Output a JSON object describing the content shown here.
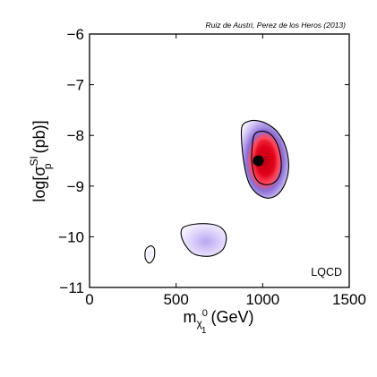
{
  "chart_data": {
    "type": "heatmap",
    "title": "",
    "credit": "Ruiz de Austri, Perez de los Heros (2013)",
    "model_label": "LQCD",
    "xlabel": {
      "base": "m",
      "sub": "χ",
      "sup": "0",
      "subsub": "1",
      "unit": " (GeV)"
    },
    "ylabel": {
      "prefix": "log[σ",
      "sup": "SI",
      "sub": "p",
      "suffix": " (pb)]"
    },
    "xlim": [
      0,
      1500
    ],
    "ylim": [
      -11,
      -6
    ],
    "x_ticks": [
      {
        "value": 0,
        "label": "0"
      },
      {
        "value": 500,
        "label": "500"
      },
      {
        "value": 1000,
        "label": "1000"
      },
      {
        "value": 1500,
        "label": "1500"
      }
    ],
    "y_ticks": [
      {
        "value": -6,
        "label": "−6"
      },
      {
        "value": -7,
        "label": "−7"
      },
      {
        "value": -8,
        "label": "−8"
      },
      {
        "value": -9,
        "label": "−9"
      },
      {
        "value": -10,
        "label": "−10"
      },
      {
        "value": -11,
        "label": "−11"
      }
    ],
    "best_fit_point": {
      "x": 975,
      "y": -8.5
    },
    "colors": {
      "low_density": "#8a6fd6",
      "mid_density": "#c9b8f2",
      "high_density": "#e0001a",
      "contour_line": "#000000",
      "best_fit": "#000000"
    },
    "regions": [
      {
        "name": "main-region",
        "outer_contour": [
          [
            880,
            -7.83
          ],
          [
            920,
            -7.72
          ],
          [
            970,
            -7.71
          ],
          [
            1030,
            -7.78
          ],
          [
            1090,
            -7.95
          ],
          [
            1135,
            -8.25
          ],
          [
            1150,
            -8.65
          ],
          [
            1120,
            -9.02
          ],
          [
            1060,
            -9.22
          ],
          [
            990,
            -9.2
          ],
          [
            930,
            -9.0
          ],
          [
            900,
            -8.7
          ],
          [
            880,
            -8.2
          ]
        ],
        "inner_contour": [
          [
            955,
            -7.97
          ],
          [
            1010,
            -7.92
          ],
          [
            1065,
            -8.05
          ],
          [
            1100,
            -8.35
          ],
          [
            1105,
            -8.7
          ],
          [
            1070,
            -8.92
          ],
          [
            1010,
            -8.97
          ],
          [
            960,
            -8.85
          ],
          [
            938,
            -8.55
          ],
          [
            940,
            -8.2
          ]
        ],
        "core_contour": [
          [
            985,
            -8.1
          ],
          [
            1040,
            -8.12
          ],
          [
            1075,
            -8.4
          ],
          [
            1065,
            -8.72
          ],
          [
            1010,
            -8.82
          ],
          [
            968,
            -8.62
          ],
          [
            962,
            -8.3
          ]
        ]
      },
      {
        "name": "middle-region",
        "outer_contour": [
          [
            540,
            -9.82
          ],
          [
            610,
            -9.75
          ],
          [
            700,
            -9.75
          ],
          [
            760,
            -9.82
          ],
          [
            790,
            -10.0
          ],
          [
            770,
            -10.25
          ],
          [
            700,
            -10.38
          ],
          [
            610,
            -10.35
          ],
          [
            560,
            -10.2
          ],
          [
            530,
            -9.98
          ]
        ]
      },
      {
        "name": "small-region",
        "outer_contour": [
          [
            325,
            -10.25
          ],
          [
            355,
            -10.18
          ],
          [
            375,
            -10.25
          ],
          [
            372,
            -10.42
          ],
          [
            345,
            -10.52
          ],
          [
            322,
            -10.42
          ]
        ]
      }
    ]
  }
}
